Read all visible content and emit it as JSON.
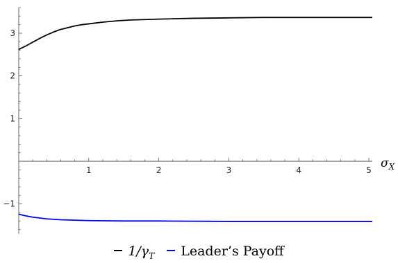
{
  "chart_data": {
    "type": "line",
    "xlabel": "σ_X",
    "ylabel": "",
    "xlim": [
      0,
      5.05
    ],
    "ylim": [
      -1.7,
      3.6
    ],
    "xticks": [
      1,
      2,
      3,
      4,
      5
    ],
    "yticks": [
      -1,
      1,
      2,
      3
    ],
    "grid": false,
    "legend_position": "bottom-center",
    "series": [
      {
        "name": "1/γ_T",
        "color": "#000000",
        "x": [
          0,
          0.1,
          0.2,
          0.3,
          0.4,
          0.5,
          0.6,
          0.7,
          0.8,
          0.9,
          1.0,
          1.2,
          1.4,
          1.6,
          1.8,
          2.0,
          2.5,
          3.0,
          3.5,
          4.0,
          4.5,
          5.05
        ],
        "y": [
          2.62,
          2.7,
          2.79,
          2.88,
          2.96,
          3.03,
          3.09,
          3.13,
          3.17,
          3.2,
          3.22,
          3.26,
          3.29,
          3.31,
          3.32,
          3.33,
          3.35,
          3.36,
          3.37,
          3.37,
          3.37,
          3.37
        ]
      },
      {
        "name": "Leader’s Payoff",
        "color": "#0000ee",
        "x": [
          0,
          0.1,
          0.2,
          0.3,
          0.4,
          0.5,
          0.6,
          0.8,
          1.0,
          1.5,
          2.0,
          3.0,
          4.0,
          5.05
        ],
        "y": [
          -1.24,
          -1.28,
          -1.31,
          -1.33,
          -1.35,
          -1.36,
          -1.37,
          -1.38,
          -1.39,
          -1.4,
          -1.4,
          -1.41,
          -1.41,
          -1.41
        ]
      }
    ]
  },
  "legend": {
    "items": [
      {
        "label": "1/γ_T",
        "color": "#000000"
      },
      {
        "label": "Leader’s Payoff",
        "color": "#0000ee"
      }
    ]
  }
}
